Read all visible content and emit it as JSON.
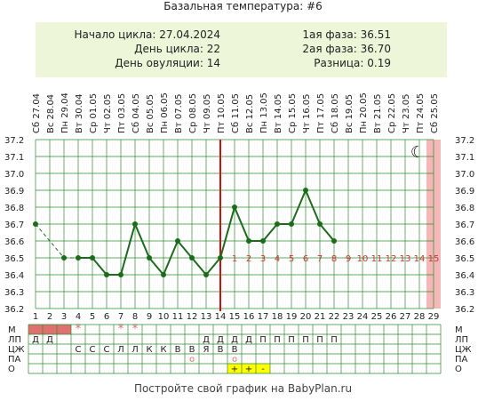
{
  "title": "Базальная температура: #6",
  "info": {
    "left": [
      {
        "label": "Начало цикла:",
        "value": "27.04.2024"
      },
      {
        "label": "День цикла:",
        "value": "22"
      },
      {
        "label": "День овуляции:",
        "value": "14"
      }
    ],
    "right": [
      {
        "label": "1ая фаза:",
        "value": "36.51"
      },
      {
        "label": "2ая фаза:",
        "value": "36.70"
      },
      {
        "label": "Разница:",
        "value": "0.19"
      }
    ]
  },
  "footer": "Постройте свой график на BabyPlan.ru",
  "colors": {
    "line": "#1b6b1b",
    "grid": "#2e8b2e",
    "ovulation": "#cc1111",
    "post_ovulation_numbers": "#cc3333",
    "last_day_band": "#f5b8b8",
    "m_marks": "#e07070",
    "o_marks": "#ffff00"
  },
  "chart_data": {
    "type": "line",
    "x": [
      1,
      2,
      3,
      4,
      5,
      6,
      7,
      8,
      9,
      10,
      11,
      12,
      13,
      14,
      15,
      16,
      17,
      18,
      19,
      20,
      21,
      22,
      23,
      24,
      25,
      26,
      27,
      28,
      29
    ],
    "dates": [
      "Сб 27.04",
      "Вс 28.04",
      "Пн 29.04",
      "Вт 30.04",
      "Ср 01.05",
      "Чт 02.05",
      "Пт 03.05",
      "Сб 04.05",
      "Вс 05.05",
      "Пн 06.05",
      "Вт 07.05",
      "Ср 08.05",
      "Чт 09.05",
      "Пт 10.05",
      "Сб 11.05",
      "Вс 12.05",
      "Пн 13.05",
      "Вт 14.05",
      "Ср 15.05",
      "Чт 16.05",
      "Пт 17.05",
      "Сб 18.05",
      "Вс 19.05",
      "Пн 20.05",
      "Вт 21.05",
      "Ср 22.05",
      "Чт 23.05",
      "Пт 24.05",
      "Сб 25.05"
    ],
    "temperature": [
      36.7,
      null,
      36.5,
      36.5,
      36.5,
      36.4,
      36.4,
      36.7,
      36.5,
      36.4,
      36.6,
      36.5,
      36.4,
      36.5,
      36.8,
      36.6,
      36.6,
      36.7,
      36.7,
      36.9,
      36.7,
      36.6,
      null,
      null,
      null,
      null,
      null,
      null,
      null
    ],
    "y_ticks": [
      "37.2",
      "37.1",
      "37.0",
      "36.9",
      "36.8",
      "36.7",
      "36.6",
      "36.5",
      "36.4",
      "36.3",
      "36.2"
    ],
    "ylim": [
      36.2,
      37.2
    ],
    "coverline": 36.5,
    "ovulation_day": 14,
    "post_ovulation_labels": [
      "1",
      "2",
      "3",
      "4",
      "5",
      "6",
      "7",
      "8",
      "9",
      "10",
      "11",
      "12",
      "13",
      "14",
      "15"
    ],
    "grid": true,
    "moon_icon": "crescent-moon-icon"
  },
  "table": {
    "row_labels": [
      "М",
      "ЛП",
      "ЦЖ",
      "ПА",
      "О"
    ],
    "rows": {
      "M": {
        "1": "fill",
        "2": "fill",
        "3": "fill",
        "4": "*",
        "7": "*",
        "8": "*"
      },
      "LP": {
        "1": "Д",
        "2": "Д",
        "13": "Д",
        "14": "Д",
        "15": "Д",
        "16": "Д",
        "17": "П",
        "18": "П",
        "19": "П",
        "20": "П",
        "21": "П",
        "22": "П"
      },
      "CZH": {
        "4": "С",
        "5": "С",
        "6": "С",
        "7": "Л",
        "8": "Л",
        "9": "К",
        "10": "К",
        "11": "В",
        "12": "В",
        "13": "Я",
        "14": "В",
        "15": "В"
      },
      "PA": {
        "12": "о",
        "15": "о"
      },
      "O": {
        "15": "+",
        "16": "+",
        "17": "-"
      }
    }
  }
}
